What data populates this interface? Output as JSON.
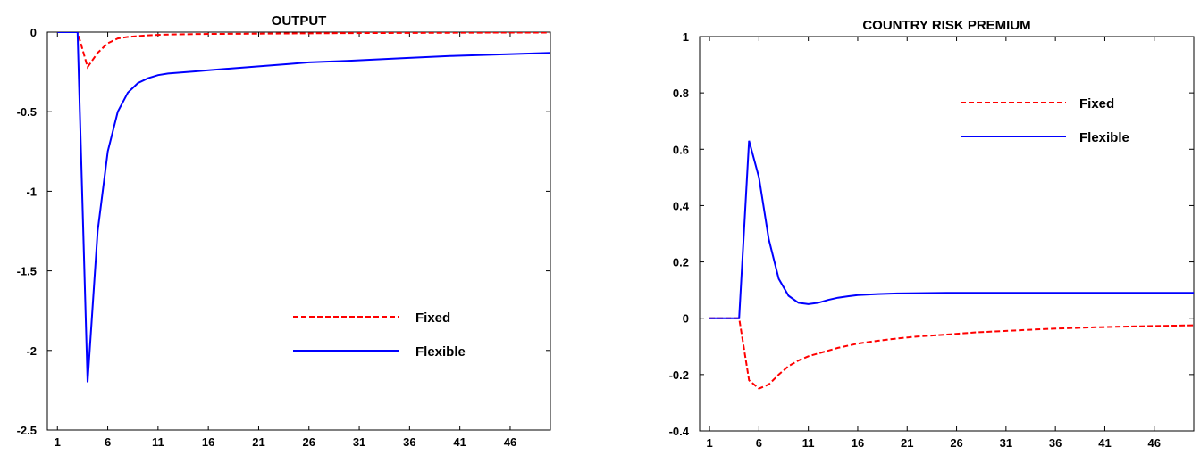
{
  "chart_data": [
    {
      "type": "line",
      "title": "OUTPUT",
      "xlim": [
        0,
        50
      ],
      "ylim": [
        -2.5,
        0
      ],
      "xticks": [
        1,
        6,
        11,
        16,
        21,
        26,
        31,
        36,
        41,
        46
      ],
      "yticks": [
        0,
        -0.5,
        -1,
        -1.5,
        -2,
        -2.5
      ],
      "ytick_labels": [
        "0",
        "-0.5",
        "-1",
        "-1.5",
        "-2",
        "-2.5"
      ],
      "grid": false,
      "legend_position": "lower-right",
      "series": [
        {
          "name": "Fixed",
          "color": "#ff0000",
          "style": "dashed",
          "x": [
            1,
            2,
            3,
            4,
            5,
            6,
            7,
            8,
            9,
            10,
            12,
            15,
            20,
            25,
            30,
            35,
            40,
            45,
            50
          ],
          "y": [
            0,
            0,
            0,
            -0.22,
            -0.13,
            -0.07,
            -0.04,
            -0.03,
            -0.025,
            -0.02,
            -0.015,
            -0.012,
            -0.01,
            -0.008,
            -0.006,
            -0.005,
            -0.004,
            -0.003,
            -0.003
          ]
        },
        {
          "name": "Flexible",
          "color": "#0000ff",
          "style": "solid",
          "x": [
            1,
            2,
            3,
            4,
            5,
            6,
            7,
            8,
            9,
            10,
            11,
            12,
            13,
            14,
            15,
            16,
            18,
            20,
            22,
            24,
            26,
            28,
            30,
            35,
            40,
            45,
            50
          ],
          "y": [
            0,
            0,
            0,
            -2.2,
            -1.25,
            -0.75,
            -0.5,
            -0.38,
            -0.32,
            -0.29,
            -0.27,
            -0.26,
            -0.255,
            -0.25,
            -0.245,
            -0.24,
            -0.23,
            -0.22,
            -0.21,
            -0.2,
            -0.19,
            -0.185,
            -0.18,
            -0.165,
            -0.15,
            -0.14,
            -0.13
          ]
        }
      ]
    },
    {
      "type": "line",
      "title": "COUNTRY RISK PREMIUM",
      "xlim": [
        0,
        50
      ],
      "ylim": [
        -0.4,
        1
      ],
      "xticks": [
        1,
        6,
        11,
        16,
        21,
        26,
        31,
        36,
        41,
        46
      ],
      "yticks": [
        1,
        0.8,
        0.6,
        0.4,
        0.2,
        0,
        -0.2,
        -0.4
      ],
      "ytick_labels": [
        "1",
        "0.8",
        "0.6",
        "0.4",
        "0.2",
        "0",
        "-0.2",
        "-0.4"
      ],
      "grid": false,
      "legend_position": "upper-right",
      "series": [
        {
          "name": "Fixed",
          "color": "#ff0000",
          "style": "dashed",
          "x": [
            1,
            2,
            3,
            4,
            5,
            6,
            7,
            8,
            9,
            10,
            11,
            12,
            14,
            16,
            18,
            20,
            22,
            25,
            28,
            31,
            35,
            40,
            45,
            50
          ],
          "y": [
            0,
            0,
            0,
            0,
            -0.22,
            -0.25,
            -0.235,
            -0.2,
            -0.17,
            -0.15,
            -0.135,
            -0.125,
            -0.105,
            -0.09,
            -0.08,
            -0.072,
            -0.065,
            -0.058,
            -0.05,
            -0.045,
            -0.038,
            -0.032,
            -0.028,
            -0.025
          ]
        },
        {
          "name": "Flexible",
          "color": "#0000ff",
          "style": "solid",
          "x": [
            1,
            2,
            3,
            4,
            5,
            6,
            7,
            8,
            9,
            10,
            11,
            12,
            13,
            14,
            15,
            16,
            18,
            20,
            25,
            30,
            40,
            50
          ],
          "y": [
            0,
            0,
            0,
            0,
            0.63,
            0.5,
            0.28,
            0.14,
            0.08,
            0.055,
            0.05,
            0.055,
            0.065,
            0.073,
            0.078,
            0.082,
            0.086,
            0.088,
            0.09,
            0.09,
            0.09,
            0.09
          ]
        }
      ]
    }
  ]
}
